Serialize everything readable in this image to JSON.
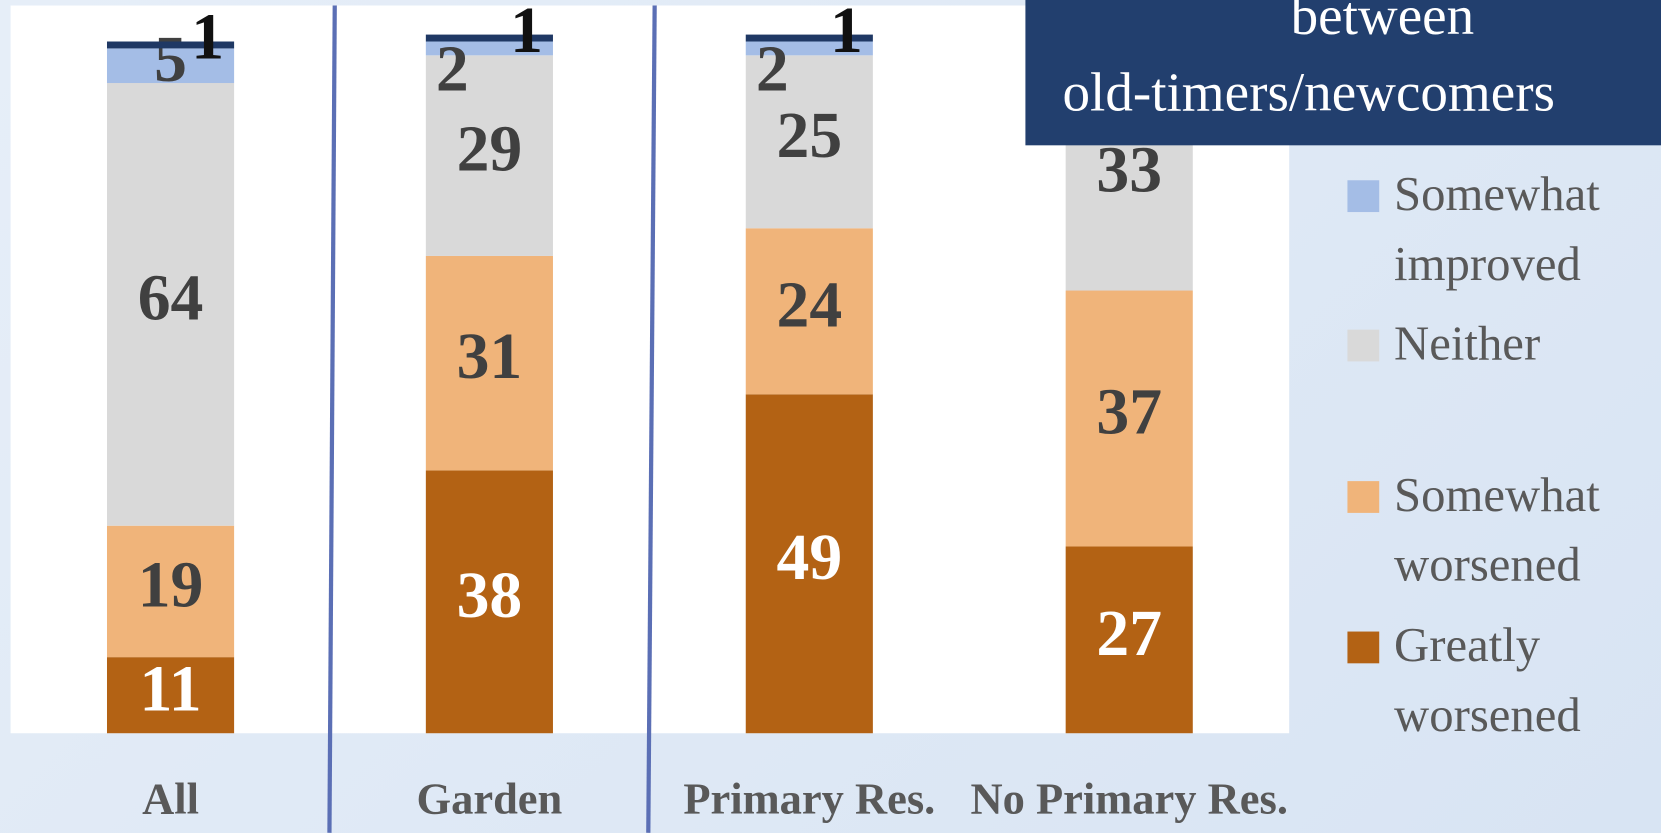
{
  "chart_data": {
    "type": "stacked_bar",
    "title_lines": [
      "between",
      "old-timers/newcomers"
    ],
    "categories": [
      "All",
      "Garden",
      "Primary Res.",
      "No Primary Res."
    ],
    "series": [
      {
        "name": "Greatly worsened",
        "color": "#b36214",
        "label_color": "#ffffff",
        "values": [
          11,
          38,
          49,
          27
        ]
      },
      {
        "name": "Somewhat worsened",
        "color": "#f0b47a",
        "label_color": "#404040",
        "values": [
          19,
          31,
          24,
          37
        ]
      },
      {
        "name": "Neither",
        "color": "#d9d9d9",
        "label_color": "#404040",
        "values": [
          64,
          29,
          25,
          33
        ]
      },
      {
        "name": "Somewhat improved",
        "color": "#a4bde6",
        "label_color": "#404040",
        "values": [
          5,
          2,
          2,
          null
        ]
      },
      {
        "name": null,
        "color": "#1f3864",
        "label_color": "#111111",
        "values": [
          1,
          1,
          1,
          null
        ]
      }
    ]
  }
}
